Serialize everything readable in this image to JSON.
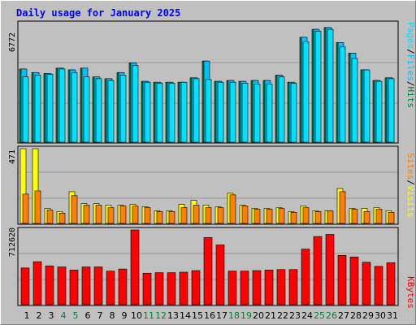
{
  "title": "Daily usage for January 2025",
  "colors": {
    "background": "#c0c0c0",
    "title": "#0000ff",
    "hits": "#008040",
    "files": "#00c0ff",
    "pages": "#00e0ff",
    "visits": "#ffff00",
    "sites": "#ff8000",
    "kbytes": "#ff0000",
    "weekend_day": "#008040",
    "weekday_day": "#000000"
  },
  "legend": {
    "pages": "Pages",
    "files": "Files",
    "hits": "Hits",
    "sep1": "/",
    "sep2": "/",
    "sites": "Sites",
    "visits": "Visits",
    "sep3": "/",
    "kbytes": "KBytes"
  },
  "chart_data": {
    "type": "bar",
    "days": [
      "1",
      "2",
      "3",
      "4",
      "5",
      "6",
      "7",
      "8",
      "9",
      "10",
      "11",
      "12",
      "13",
      "14",
      "15",
      "16",
      "17",
      "18",
      "19",
      "20",
      "21",
      "22",
      "23",
      "24",
      "25",
      "26",
      "27",
      "28",
      "29",
      "30",
      "31"
    ],
    "weekend_days": [
      "4",
      "5",
      "11",
      "12",
      "18",
      "19",
      "25",
      "26"
    ],
    "panels": [
      {
        "name": "hits-files-pages",
        "max_label": "6772",
        "max": 6772,
        "series": [
          {
            "name": "Hits",
            "values": [
              4150,
              3950,
              3900,
              4200,
              4100,
              4200,
              3700,
              3600,
              3950,
              4500,
              3450,
              3400,
              3400,
              3400,
              3650,
              4600,
              3450,
              3500,
              3450,
              3500,
              3500,
              3800,
              3400,
              5950,
              6400,
              6500,
              5650,
              5050,
              4100,
              3500,
              3650
            ]
          },
          {
            "name": "Files",
            "values": [
              4150,
              3950,
              3900,
              4200,
              4100,
              4200,
              3700,
              3600,
              3950,
              4500,
              3450,
              3400,
              3400,
              3400,
              3650,
              4600,
              3450,
              3500,
              3450,
              3500,
              3500,
              3800,
              3400,
              5950,
              6400,
              6500,
              5650,
              5050,
              4100,
              3500,
              3650
            ]
          },
          {
            "name": "Pages",
            "values": [
              3700,
              3800,
              3850,
              4150,
              3950,
              3700,
              3600,
              3500,
              3800,
              4350,
              3400,
              3350,
              3350,
              3400,
              3600,
              3550,
              3400,
              3400,
              3350,
              3300,
              3300,
              3700,
              3350,
              5700,
              6300,
              6400,
              5400,
              4750,
              4100,
              3450,
              3600
            ]
          }
        ]
      },
      {
        "name": "visits-sites",
        "max_label": "471",
        "max": 471,
        "series": [
          {
            "name": "Visits",
            "values": [
              471,
              471,
              95,
              75,
              200,
              125,
              125,
              115,
              115,
              120,
              105,
              80,
              80,
              120,
              145,
              115,
              105,
              190,
              115,
              95,
              95,
              100,
              75,
              110,
              80,
              80,
              220,
              95,
              95,
              100,
              80
            ]
          },
          {
            "name": "Sites",
            "values": [
              185,
              205,
              85,
              65,
              175,
              115,
              115,
              100,
              110,
              110,
              100,
              75,
              75,
              100,
              115,
              100,
              100,
              180,
              110,
              90,
              90,
              95,
              70,
              100,
              75,
              80,
              200,
              90,
              75,
              90,
              70
            ]
          }
        ]
      },
      {
        "name": "kbytes",
        "max_label": "712620",
        "max": 712620,
        "series": [
          {
            "name": "KBytes",
            "values": [
              350000,
              410000,
              370000,
              360000,
              330000,
              360000,
              360000,
              320000,
              340000,
              712620,
              300000,
              305000,
              305000,
              310000,
              325000,
              640000,
              570000,
              320000,
              320000,
              325000,
              330000,
              335000,
              335000,
              530000,
              650000,
              670000,
              470000,
              455000,
              405000,
              365000,
              400000
            ]
          }
        ]
      }
    ]
  }
}
